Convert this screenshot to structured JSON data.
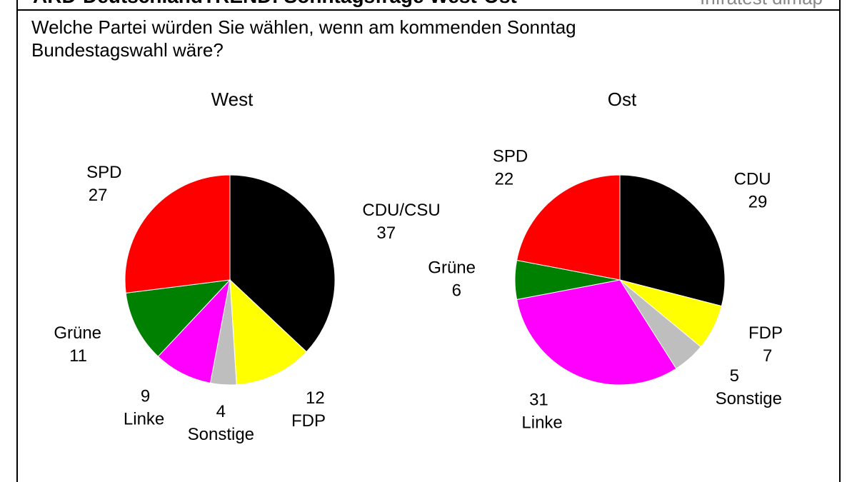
{
  "header": {
    "title": "ARD-DeutschlandTREND: Sonntagsfrage West-Ost",
    "source": "Infratest dimap",
    "question": "Welche Partei würden Sie wählen, wenn am kommenden Sonntag Bundestagswahl wäre?"
  },
  "chart_data": [
    {
      "type": "pie",
      "title": "West",
      "categories": [
        "CDU/CSU",
        "FDP",
        "Sonstige",
        "Linke",
        "Grüne",
        "SPD"
      ],
      "values": [
        37,
        12,
        4,
        9,
        11,
        27
      ],
      "colors": [
        "#000000",
        "#ffff00",
        "#bebebe",
        "#ff00ff",
        "#008000",
        "#ff0000"
      ]
    },
    {
      "type": "pie",
      "title": "Ost",
      "categories": [
        "CDU",
        "FDP",
        "Sonstige",
        "Linke",
        "Grüne",
        "SPD"
      ],
      "values": [
        29,
        7,
        5,
        31,
        6,
        22
      ],
      "colors": [
        "#000000",
        "#ffff00",
        "#bebebe",
        "#ff00ff",
        "#008000",
        "#ff0000"
      ]
    }
  ]
}
